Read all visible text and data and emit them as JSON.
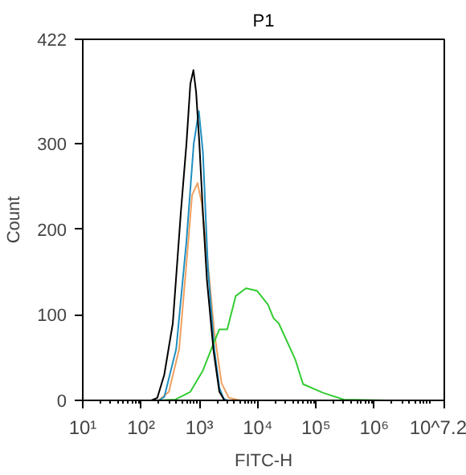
{
  "chart_data": {
    "type": "line",
    "title": "P1",
    "xlabel": "FITC-H",
    "ylabel": "Count",
    "log": "x",
    "grid": false,
    "marker": "none",
    "line_style": "solid",
    "xlim": [
      10,
      15848931.92
    ],
    "ylim": [
      0,
      422
    ],
    "xticks": [
      {
        "value": 10,
        "label": "10¹"
      },
      {
        "value": 100,
        "label": "10²"
      },
      {
        "value": 1000,
        "label": "10³"
      },
      {
        "value": 10000,
        "label": "10⁴"
      },
      {
        "value": 100000,
        "label": "10⁵"
      },
      {
        "value": 1000000,
        "label": "10⁶"
      },
      {
        "value": 15848931.92,
        "label": "10^7.2"
      }
    ],
    "yticks": [
      0,
      100,
      200,
      300,
      422
    ],
    "series": [
      {
        "color": "#f0a060",
        "x": [
          200,
          300,
          450,
          600,
          750,
          930,
          1100,
          1400,
          1800,
          2400,
          3200,
          5000
        ],
        "values": [
          0,
          10,
          60,
          160,
          240,
          254,
          230,
          160,
          80,
          20,
          3,
          0
        ]
      },
      {
        "color": "#1f8fc0",
        "x": [
          200,
          250,
          400,
          600,
          800,
          980,
          1150,
          1400,
          1800,
          2200,
          2600,
          3000
        ],
        "values": [
          0,
          4,
          60,
          186,
          300,
          338,
          290,
          155,
          60,
          15,
          2,
          0
        ]
      },
      {
        "color": "#33cc33",
        "x": [
          200,
          390,
          700,
          1150,
          1600,
          2200,
          3000,
          4200,
          6300,
          9800,
          15000,
          18700,
          23000,
          44000,
          60000,
          130000,
          300000,
          1600000,
          10000000
        ],
        "values": [
          0,
          1,
          10,
          35,
          60,
          83,
          83,
          122,
          131,
          128,
          112,
          96,
          90,
          48,
          19,
          9,
          1,
          0,
          0
        ]
      },
      {
        "color": "#000000",
        "x": [
          150,
          190,
          250,
          350,
          480,
          600,
          700,
          790,
          880,
          1000,
          1150,
          1350,
          1750,
          2200,
          2700
        ],
        "values": [
          0,
          3,
          30,
          90,
          219,
          300,
          370,
          386,
          360,
          300,
          219,
          140,
          58,
          10,
          0
        ]
      }
    ]
  }
}
